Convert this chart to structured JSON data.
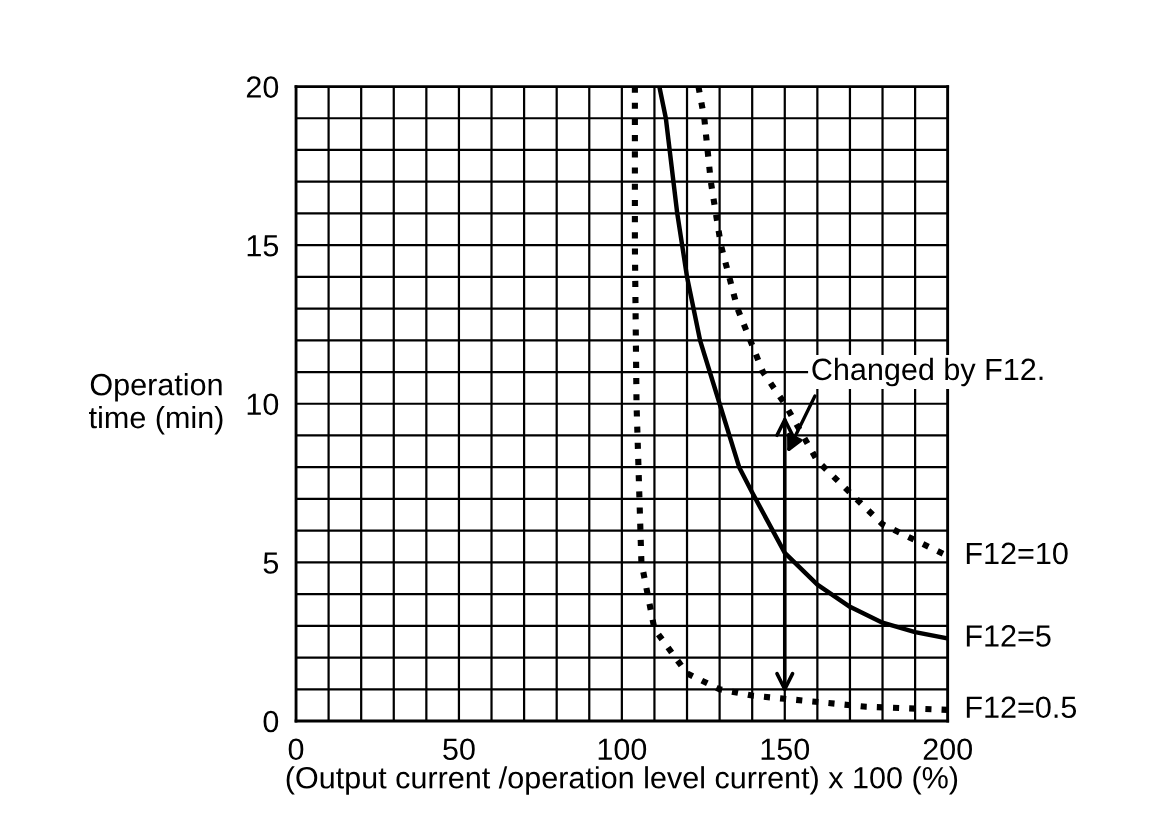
{
  "chart_data": {
    "type": "line",
    "xlabel": "(Output current /operation level current) x 100 (%)",
    "ylabel": "Operation\ntime (min)",
    "xlim": [
      0,
      200
    ],
    "ylim": [
      0,
      20
    ],
    "xticks": [
      0,
      {
        "value": 10,
        "label": null
      },
      {
        "value": 20,
        "label": null
      },
      {
        "value": 30,
        "label": null
      },
      {
        "value": 40,
        "label": null
      },
      50,
      {
        "value": 60,
        "label": null
      },
      {
        "value": 70,
        "label": null
      },
      {
        "value": 80,
        "label": null
      },
      {
        "value": 90,
        "label": null
      },
      100,
      {
        "value": 110,
        "label": null
      },
      {
        "value": 120,
        "label": null
      },
      {
        "value": 130,
        "label": null
      },
      {
        "value": 140,
        "label": null
      },
      150,
      {
        "value": 160,
        "label": null
      },
      {
        "value": 170,
        "label": null
      },
      {
        "value": 180,
        "label": null
      },
      {
        "value": 190,
        "label": null
      },
      200
    ],
    "yticks": [
      0,
      {
        "value": 1,
        "label": null
      },
      {
        "value": 2,
        "label": null
      },
      {
        "value": 3,
        "label": null
      },
      {
        "value": 4,
        "label": null
      },
      5,
      {
        "value": 6,
        "label": null
      },
      {
        "value": 7,
        "label": null
      },
      {
        "value": 8,
        "label": null
      },
      {
        "value": 9,
        "label": null
      },
      10,
      {
        "value": 11,
        "label": null
      },
      {
        "value": 12,
        "label": null
      },
      {
        "value": 13,
        "label": null
      },
      {
        "value": 14,
        "label": null
      },
      15,
      {
        "value": 16,
        "label": null
      },
      {
        "value": 17,
        "label": null
      },
      {
        "value": 18,
        "label": null
      },
      {
        "value": 19,
        "label": null
      },
      20
    ],
    "grid": true,
    "marker": "none",
    "legend": false,
    "series": [
      {
        "name": "F12=10",
        "color": "#000000",
        "line_style": "dotted",
        "x": [
          123.5,
          125.3,
          127.3,
          130.4,
          135.5,
          143.3,
          150,
          160,
          170,
          180,
          190,
          200
        ],
        "values": [
          20,
          19,
          17,
          15,
          13,
          11,
          10,
          8.2,
          7.2,
          6.2,
          5.7,
          5.2
        ]
      },
      {
        "name": "F12=5",
        "color": "#000000",
        "line_style": "solid",
        "x": [
          111.5,
          113.5,
          117,
          120,
          124,
          130,
          136,
          140,
          150,
          160,
          170,
          180,
          190,
          200
        ],
        "values": [
          20,
          19,
          16,
          14,
          12,
          10,
          8,
          7.2,
          5.3,
          4.3,
          3.6,
          3.1,
          2.8,
          2.6
        ]
      },
      {
        "name": "F12=0.5",
        "color": "#000000",
        "line_style": "dotted",
        "x": [
          104,
          104,
          104.5,
          106,
          110,
          120,
          130,
          140,
          150,
          175,
          200
        ],
        "values": [
          20,
          15,
          10,
          5,
          2.9,
          1.5,
          1.0,
          0.8,
          0.7,
          0.45,
          0.35
        ]
      }
    ],
    "annotations": [
      "Changed by F12."
    ]
  }
}
